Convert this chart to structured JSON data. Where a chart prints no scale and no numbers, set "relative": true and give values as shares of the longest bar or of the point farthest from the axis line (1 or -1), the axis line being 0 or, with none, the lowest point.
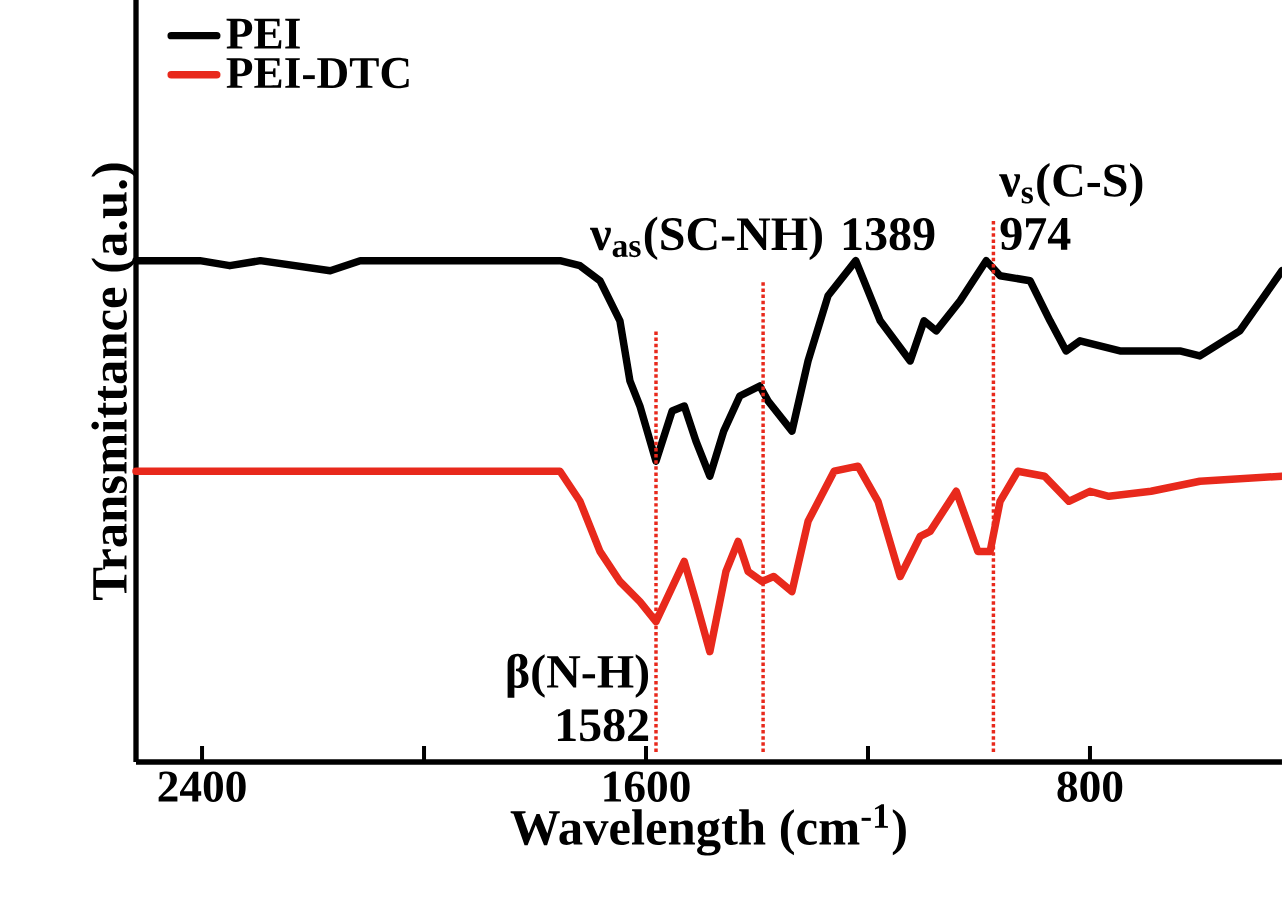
{
  "chart_data": {
    "type": "line",
    "xlabel": "Wavelength (cm$^{-1}$)",
    "ylabel": "Transmittance (a.u.)",
    "relative": true,
    "xlim": [
      2519,
      454
    ],
    "xticks": [
      2400,
      {
        "value": 2000,
        "label": null
      },
      1600,
      {
        "value": 1200,
        "label": null
      },
      800
    ],
    "tick_labels": "x",
    "legend": "top left",
    "series": [
      {
        "name": "PEI",
        "color": "#000000",
        "x": [
          2519,
          2404,
          2350,
          2295,
          2169,
          2115,
          1755,
          1719,
          1683,
          1647,
          1629,
          1611,
          1582,
          1553,
          1531,
          1510,
          1485,
          1460,
          1431,
          1395,
          1380,
          1337,
          1308,
          1272,
          1222,
          1178,
          1124,
          1099,
          1077,
          1034,
          987,
          962,
          908,
          872,
          843,
          818,
          746,
          638,
          602,
          530,
          454
        ],
        "values": [
          1.0,
          1.0,
          0.99,
          1.0,
          0.98,
          1.0,
          1.0,
          0.99,
          0.96,
          0.88,
          0.76,
          0.71,
          0.6,
          0.7,
          0.71,
          0.64,
          0.57,
          0.66,
          0.73,
          0.75,
          0.72,
          0.66,
          0.8,
          0.93,
          1.0,
          0.88,
          0.8,
          0.88,
          0.86,
          0.92,
          1.0,
          0.97,
          0.96,
          0.88,
          0.82,
          0.84,
          0.82,
          0.82,
          0.81,
          0.86,
          0.98
        ]
      },
      {
        "name": "PEI-DTC",
        "color": "#e8291c",
        "x": [
          2519,
          2295,
          2115,
          1755,
          1719,
          1683,
          1647,
          1611,
          1582,
          1531,
          1510,
          1485,
          1456,
          1434,
          1416,
          1391,
          1370,
          1337,
          1308,
          1261,
          1218,
          1182,
          1142,
          1106,
          1088,
          1041,
          1002,
          980,
          962,
          930,
          882,
          838,
          800,
          766,
          690,
          602,
          454
        ],
        "values": [
          0.58,
          0.58,
          0.58,
          0.58,
          0.52,
          0.42,
          0.36,
          0.32,
          0.28,
          0.4,
          0.32,
          0.22,
          0.38,
          0.44,
          0.38,
          0.36,
          0.37,
          0.34,
          0.48,
          0.58,
          0.59,
          0.52,
          0.37,
          0.45,
          0.46,
          0.54,
          0.42,
          0.42,
          0.52,
          0.58,
          0.57,
          0.52,
          0.54,
          0.53,
          0.54,
          0.56,
          0.57
        ]
      }
    ],
    "ref_lines": [
      {
        "axis": "x",
        "value": 1582,
        "color": "#e8291c",
        "line_style": "dotted",
        "label": "β(N-H) 1582"
      },
      {
        "axis": "x",
        "value": 1389,
        "color": "#e8291c",
        "line_style": "dotted",
        "label": "ν$_{as}$(SC-NH) 1389"
      },
      {
        "axis": "x",
        "value": 974,
        "color": "#e8291c",
        "line_style": "dotted",
        "label": "ν$_{s}$(C-S) 974"
      }
    ]
  }
}
